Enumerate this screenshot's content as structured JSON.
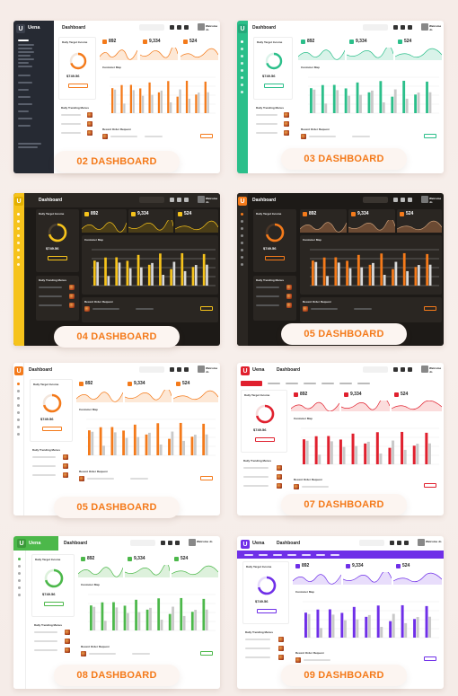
{
  "labels": [
    "02 DASHBOARD",
    "03 DASHBOARD",
    "04 DASHBOARD",
    "05 DASHBOARD",
    "05 DASHBOARD",
    "07 DASHBOARD",
    "08 DASHBOARD",
    "09 DASHBOARD"
  ],
  "common": {
    "dashboard_title": "Dashboard",
    "target_title": "Daily Target Income",
    "stat1": "892",
    "stat2": "9,334",
    "stat3": "524",
    "price": "$749.56",
    "chart_title": "Customer Map",
    "trending_title": "Daily Trending Menus",
    "recent_title": "Recent Order Request",
    "brand": "Uena",
    "user": "Welcome Jo"
  },
  "themes": [
    {
      "name": "dash02",
      "accent": "#f47a1a",
      "bg": "light",
      "sidebar": "dark"
    },
    {
      "name": "dash03",
      "accent": "#2bbf8a",
      "bg": "light",
      "sidebar": "accent"
    },
    {
      "name": "dash04",
      "accent": "#f6c31b",
      "bg": "dark",
      "sidebar": "accent"
    },
    {
      "name": "dash05a",
      "accent": "#f47a1a",
      "bg": "dark",
      "sidebar": "dark"
    },
    {
      "name": "dash05b",
      "accent": "#f47a1a",
      "bg": "light",
      "sidebar": "thin"
    },
    {
      "name": "dash07",
      "accent": "#e0202e",
      "bg": "light",
      "sidebar": "none"
    },
    {
      "name": "dash08",
      "accent": "#4cb84a",
      "bg": "light",
      "sidebar": "brand"
    },
    {
      "name": "dash09",
      "accent": "#6f2fe8",
      "bg": "light",
      "sidebar": "topnav"
    }
  ]
}
